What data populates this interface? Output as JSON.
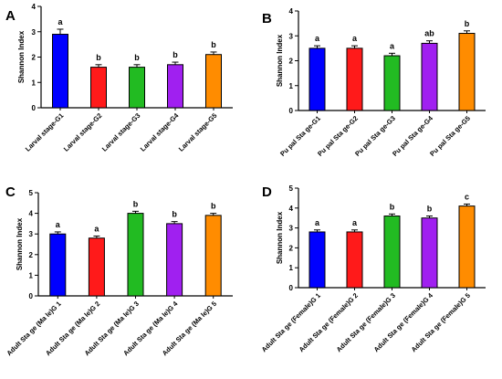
{
  "chart_data": [
    {
      "type": "bar",
      "panel": "A",
      "ylabel": "Shannon Index",
      "ylim": [
        0,
        4
      ],
      "yticks": [
        "0",
        "1",
        "2",
        "3",
        "4"
      ],
      "categories": [
        "Larval stage-G1",
        "Larval stage-G2",
        "Larval stage-G3",
        "Larval stage-G4",
        "Larval stage-G5"
      ],
      "values": [
        2.9,
        1.6,
        1.6,
        1.7,
        2.1
      ],
      "errors": [
        0.2,
        0.1,
        0.1,
        0.1,
        0.1
      ],
      "significance": [
        "a",
        "b",
        "b",
        "b",
        "b"
      ],
      "colors": [
        "#0000ff",
        "#ff1a1a",
        "#22bb22",
        "#a020f0",
        "#ff8c00"
      ]
    },
    {
      "type": "bar",
      "panel": "B",
      "ylabel": "Shannon Index",
      "ylim": [
        0,
        4
      ],
      "yticks": [
        "0",
        "1",
        "2",
        "3",
        "4"
      ],
      "categories": [
        "Pu pal Sta ge-G1",
        "Pu pal Sta ge-G2",
        "Pu pal Sta ge-G3",
        "Pu pal Sta ge-G4",
        "Pu pal Sta ge-G5"
      ],
      "values": [
        2.5,
        2.5,
        2.2,
        2.7,
        3.1
      ],
      "errors": [
        0.1,
        0.1,
        0.1,
        0.1,
        0.1
      ],
      "significance": [
        "a",
        "a",
        "a",
        "ab",
        "b"
      ],
      "colors": [
        "#0000ff",
        "#ff1a1a",
        "#22bb22",
        "#a020f0",
        "#ff8c00"
      ]
    },
    {
      "type": "bar",
      "panel": "C",
      "ylabel": "Shannon Index",
      "ylim": [
        0,
        5
      ],
      "yticks": [
        "0",
        "1",
        "2",
        "3",
        "4",
        "5"
      ],
      "categories": [
        "Adult Sta ge (Ma le)G 1",
        "Adult Sta ge (Ma le)G 2",
        "Adult Sta ge (Ma le)G 3",
        "Adult Sta ge (Ma le)G 4",
        "Adult Sta ge (Ma le)G 5"
      ],
      "values": [
        3.0,
        2.8,
        4.0,
        3.5,
        3.9
      ],
      "errors": [
        0.1,
        0.1,
        0.1,
        0.1,
        0.1
      ],
      "significance": [
        "a",
        "a",
        "b",
        "b",
        "b"
      ],
      "colors": [
        "#0000ff",
        "#ff1a1a",
        "#22bb22",
        "#a020f0",
        "#ff8c00"
      ]
    },
    {
      "type": "bar",
      "panel": "D",
      "ylabel": "Shannon Index",
      "ylim": [
        0,
        5
      ],
      "yticks": [
        "0",
        "1",
        "2",
        "3",
        "4",
        "5"
      ],
      "categories": [
        "Adult Sta ge (Female)G 1",
        "Adult Sta ge (Female)G 2",
        "Adult Sta ge (Female)G 3",
        "Adult Sta ge (Female)G 4",
        "Adult Sta ge (Female)G 5"
      ],
      "values": [
        2.8,
        2.8,
        3.6,
        3.5,
        4.1
      ],
      "errors": [
        0.1,
        0.1,
        0.1,
        0.1,
        0.1
      ],
      "significance": [
        "a",
        "a",
        "b",
        "b",
        "c"
      ],
      "colors": [
        "#0000ff",
        "#ff1a1a",
        "#22bb22",
        "#a020f0",
        "#ff8c00"
      ]
    }
  ]
}
